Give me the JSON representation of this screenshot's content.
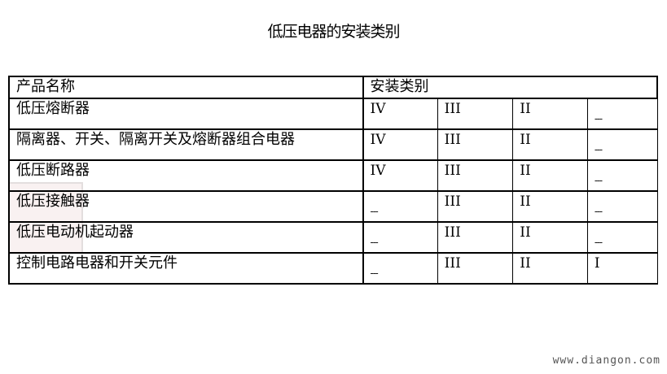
{
  "title": "低压电器的安装类别",
  "table": {
    "header": {
      "name": "产品名称",
      "category": "安装类别"
    },
    "rows": [
      {
        "name": "低压熔断器",
        "c": [
          "IV",
          "III",
          "II",
          "---"
        ]
      },
      {
        "name": "隔离器、开关、隔离开关及熔断器组合电器",
        "c": [
          "IV",
          "III",
          "II",
          "---"
        ]
      },
      {
        "name": "低压断路器",
        "c": [
          "IV",
          "III",
          "II",
          "---"
        ]
      },
      {
        "name": "低压接触器",
        "c": [
          "---",
          "III",
          "II",
          "---"
        ]
      },
      {
        "name": "低压电动机起动器",
        "c": [
          "---",
          "III",
          "II",
          "---"
        ]
      },
      {
        "name": "控制电路电器和开关元件",
        "c": [
          "---",
          "III",
          "II",
          "I"
        ]
      }
    ]
  },
  "watermark": "www.diangon.com"
}
